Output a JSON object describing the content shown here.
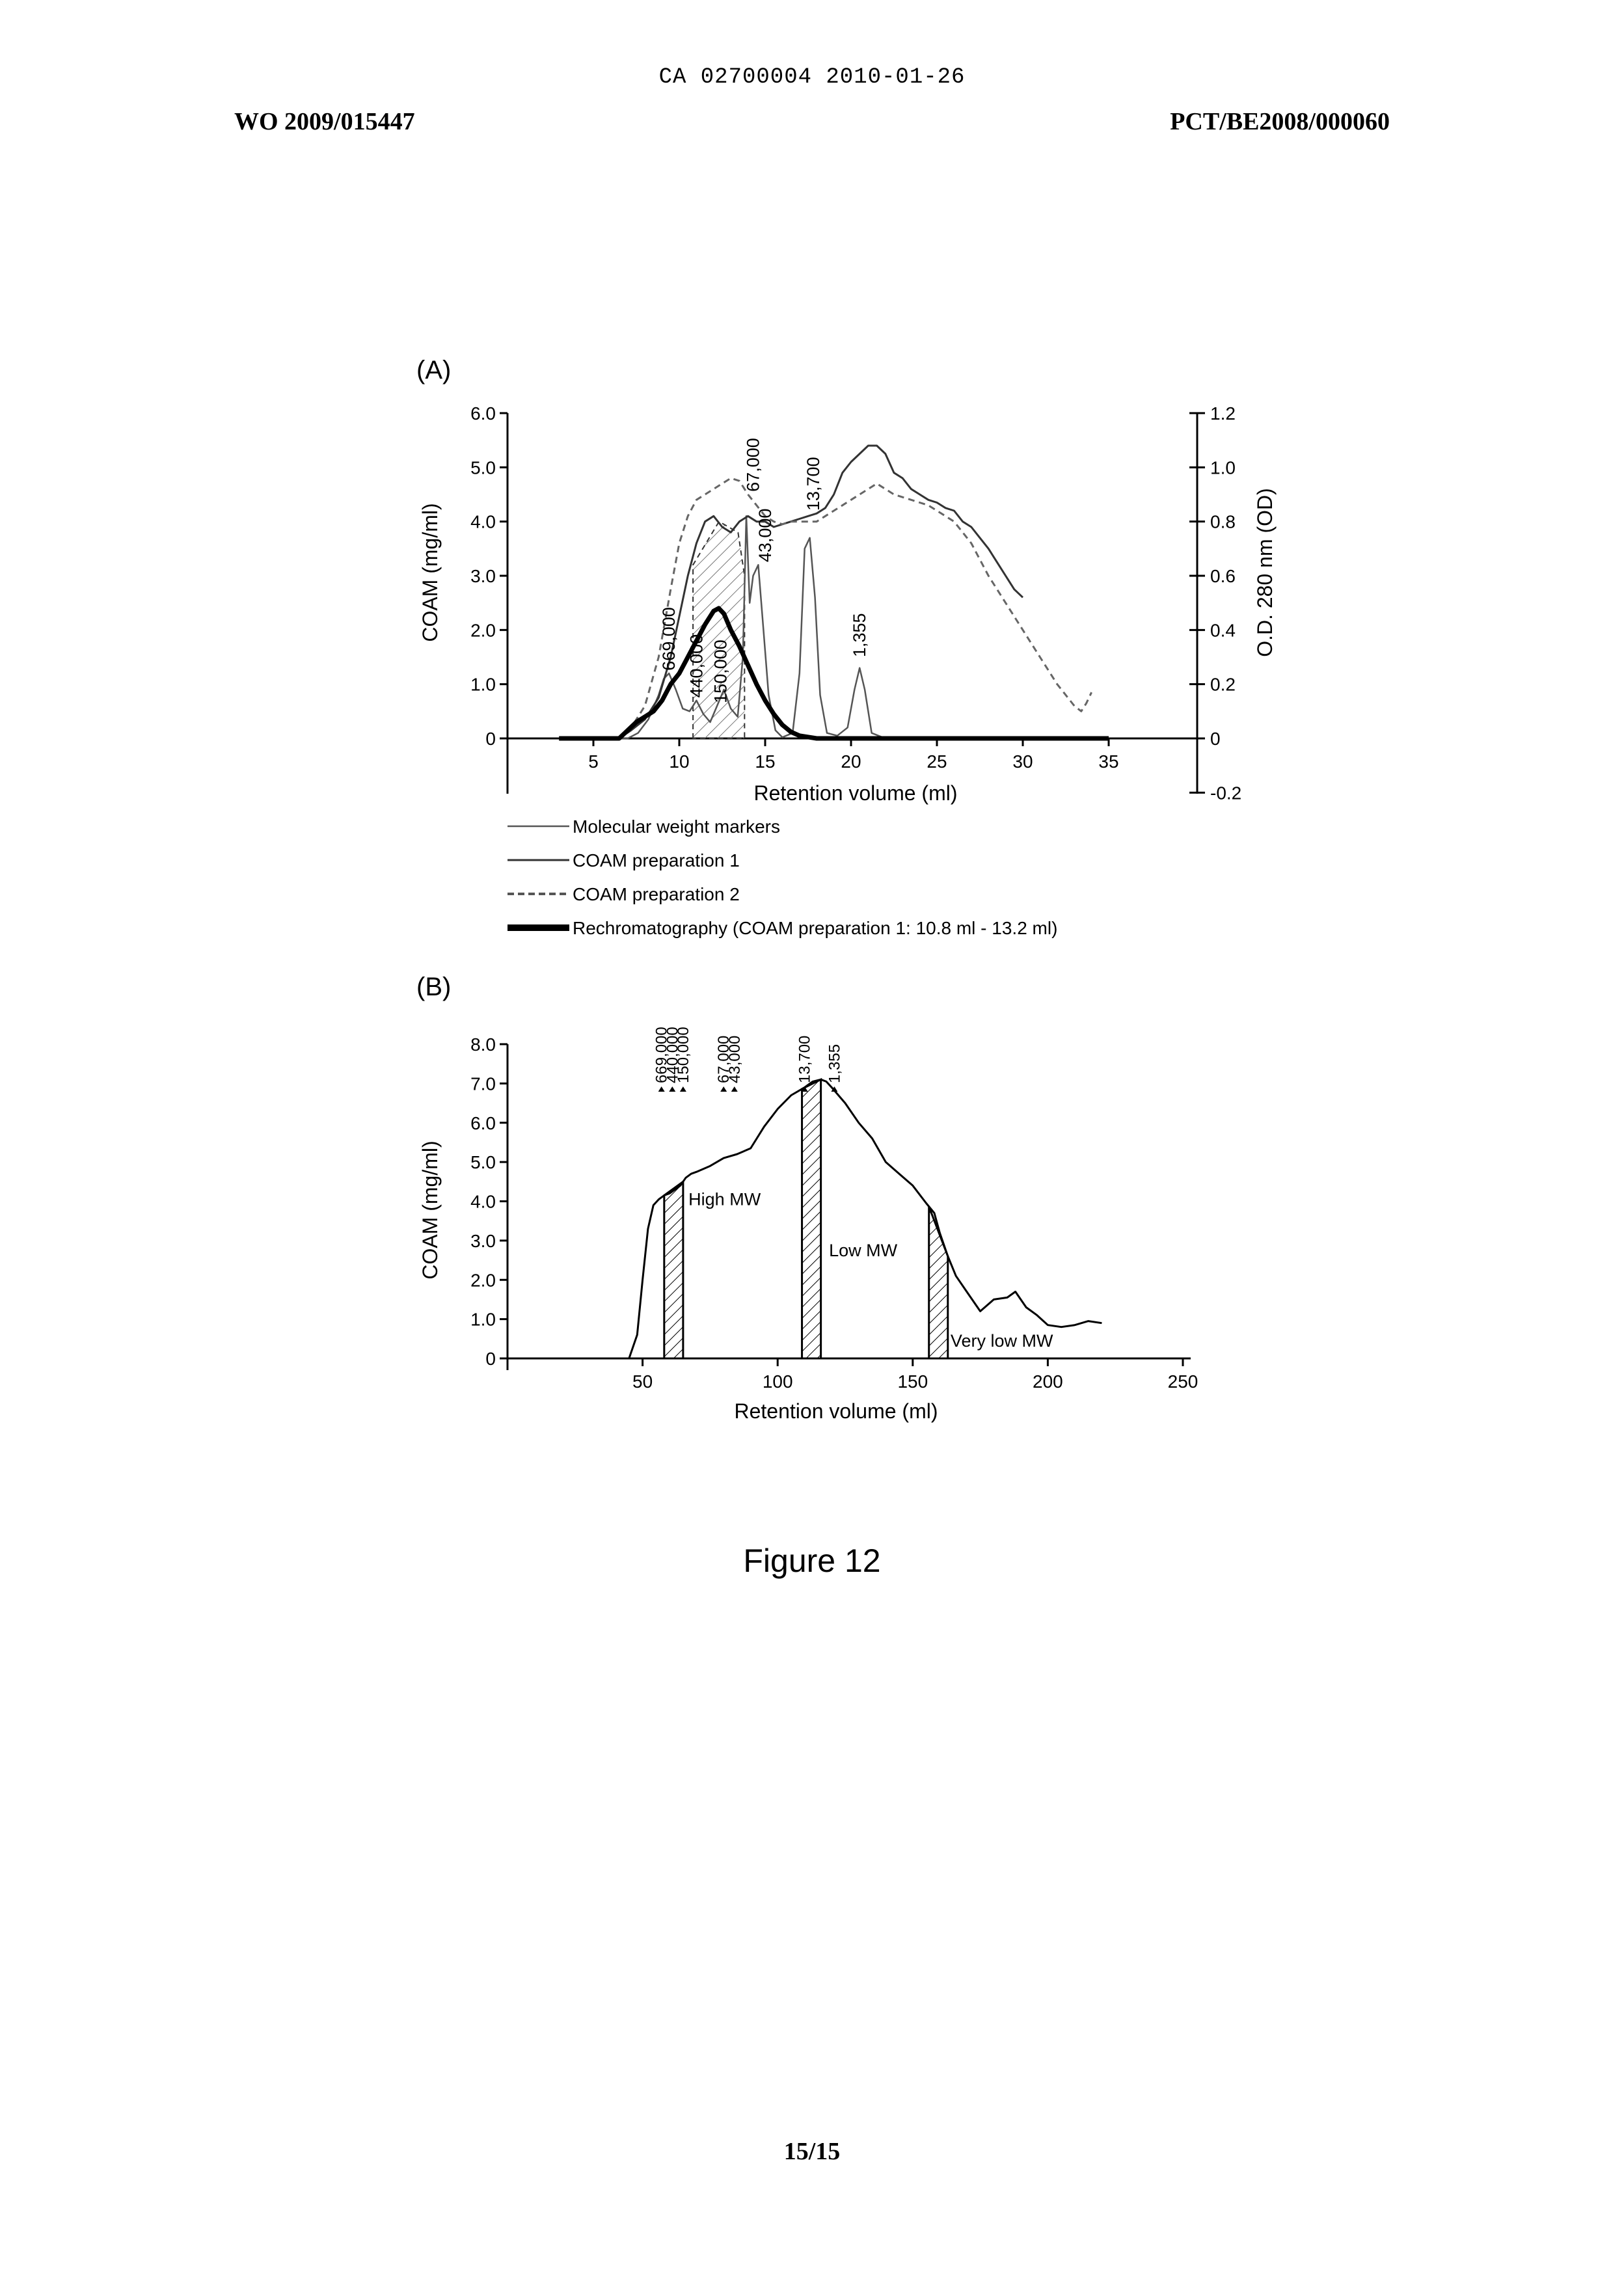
{
  "header": {
    "center": "CA 02700004 2010-01-26",
    "left": "WO 2009/015447",
    "right": "PCT/BE2008/000060"
  },
  "figure_caption": "Figure 12",
  "page_number": "15/15",
  "chart_data": [
    {
      "panel_label": "(A)",
      "type": "line",
      "xlabel": "Retention volume (ml)",
      "ylabel": "COAM (mg/ml)",
      "y2label": "O.D. 280 nm (OD)",
      "x_ticks": [
        5,
        10,
        15,
        20,
        25,
        30,
        35
      ],
      "y_ticks": [
        "0",
        "1.0",
        "2.0",
        "3.0",
        "4.0",
        "5.0",
        "6.0"
      ],
      "y2_ticks": [
        "-0.2",
        "0",
        "0.2",
        "0.4",
        "0.6",
        "0.8",
        "1.0",
        "1.2"
      ],
      "xlim": [
        0,
        40
      ],
      "ylim": [
        0,
        6.0
      ],
      "y2lim": [
        -0.2,
        1.2
      ],
      "shaded_region": {
        "from": 10.8,
        "to": 13.8
      },
      "legend": [
        {
          "label": "Molecular weight markers",
          "style": "thin"
        },
        {
          "label": "COAM preparation 1",
          "style": "solid"
        },
        {
          "label": "COAM preparation 2",
          "style": "dashed"
        },
        {
          "label": "Rechromatography (COAM preparation 1: 10.8 ml - 13.2 ml)",
          "style": "thick"
        }
      ],
      "marker_labels": [
        {
          "text": "669,000",
          "x": 9.4,
          "y": 1.25
        },
        {
          "text": "440,000",
          "x": 11.0,
          "y": 0.75
        },
        {
          "text": "150,000",
          "x": 12.4,
          "y": 0.65
        },
        {
          "text": "67,000",
          "x": 14.3,
          "y": 4.55
        },
        {
          "text": "43,000",
          "x": 15.0,
          "y": 3.25
        },
        {
          "text": "13,700",
          "x": 17.8,
          "y": 4.2
        },
        {
          "text": "1,355",
          "x": 20.5,
          "y": 1.5
        }
      ],
      "series": [
        {
          "name": "Molecular weight markers",
          "axis": "left",
          "x": [
            3,
            7.0,
            7.6,
            8.2,
            8.8,
            9.1,
            9.4,
            9.8,
            10.2,
            10.6,
            11.0,
            11.4,
            11.8,
            12.2,
            12.6,
            13.0,
            13.4,
            13.7,
            13.9,
            14.1,
            14.3,
            14.6,
            14.9,
            15.2,
            15.6,
            16.0,
            16.6,
            17.0,
            17.3,
            17.6,
            17.9,
            18.2,
            18.6,
            19.2,
            19.8,
            20.2,
            20.5,
            20.8,
            21.2,
            22,
            25,
            34
          ],
          "y": [
            0,
            0,
            0.1,
            0.35,
            0.8,
            1.1,
            1.2,
            0.9,
            0.55,
            0.5,
            0.7,
            0.45,
            0.3,
            0.6,
            0.9,
            0.55,
            0.4,
            1.5,
            4.1,
            2.5,
            3.0,
            3.2,
            2.0,
            0.8,
            0.15,
            0.02,
            0.1,
            1.2,
            3.5,
            3.7,
            2.6,
            0.8,
            0.1,
            0.05,
            0.2,
            0.9,
            1.3,
            0.9,
            0.1,
            0,
            0,
            0
          ]
        },
        {
          "name": "COAM preparation 1",
          "axis": "right",
          "x": [
            6.5,
            7.2,
            8.0,
            8.8,
            9.5,
            10.0,
            10.5,
            11.0,
            11.5,
            12.0,
            12.5,
            13.0,
            13.5,
            14.0,
            14.5,
            15.0,
            15.5,
            16.0,
            16.5,
            17.0,
            17.5,
            18.0,
            18.5,
            19.0,
            19.5,
            20.0,
            20.5,
            21.0,
            21.5,
            22.0,
            22.5,
            23.0,
            23.5,
            24.0,
            24.5,
            25.0,
            25.5,
            26.0,
            26.5,
            27.0,
            27.5,
            28.0,
            28.5,
            29.0,
            29.5,
            30.0
          ],
          "y": [
            0,
            0.03,
            0.07,
            0.15,
            0.3,
            0.45,
            0.6,
            0.72,
            0.8,
            0.82,
            0.78,
            0.76,
            0.8,
            0.82,
            0.8,
            0.8,
            0.78,
            0.79,
            0.8,
            0.81,
            0.82,
            0.83,
            0.85,
            0.9,
            0.98,
            1.02,
            1.05,
            1.08,
            1.08,
            1.05,
            0.98,
            0.96,
            0.92,
            0.9,
            0.88,
            0.87,
            0.85,
            0.84,
            0.8,
            0.78,
            0.74,
            0.7,
            0.65,
            0.6,
            0.55,
            0.52
          ]
        },
        {
          "name": "COAM preparation 2",
          "axis": "right",
          "x": [
            6.5,
            7.2,
            8.0,
            8.8,
            9.5,
            10.0,
            10.5,
            11.0,
            11.5,
            12.0,
            12.5,
            13.0,
            13.5,
            14.0,
            14.5,
            15.0,
            15.5,
            16.0,
            16.5,
            17.0,
            17.5,
            18.0,
            18.5,
            19.0,
            19.5,
            20.0,
            20.5,
            21.0,
            21.5,
            22.0,
            22.5,
            23.0,
            23.5,
            24.0,
            24.5,
            25.0,
            25.5,
            26.0,
            26.5,
            27.0,
            27.5,
            28.0,
            28.5,
            29.0,
            29.5,
            30.0,
            30.5,
            31.0,
            31.5,
            32.0,
            32.5,
            33.0,
            33.4,
            33.7,
            34.0
          ],
          "y": [
            0,
            0.04,
            0.12,
            0.3,
            0.55,
            0.72,
            0.82,
            0.88,
            0.9,
            0.92,
            0.94,
            0.96,
            0.95,
            0.9,
            0.86,
            0.82,
            0.8,
            0.79,
            0.8,
            0.8,
            0.8,
            0.8,
            0.82,
            0.84,
            0.86,
            0.88,
            0.9,
            0.92,
            0.94,
            0.92,
            0.9,
            0.89,
            0.88,
            0.87,
            0.86,
            0.84,
            0.82,
            0.8,
            0.76,
            0.72,
            0.66,
            0.6,
            0.55,
            0.5,
            0.45,
            0.4,
            0.35,
            0.3,
            0.25,
            0.2,
            0.16,
            0.12,
            0.1,
            0.13,
            0.17
          ]
        },
        {
          "name": "Rechromatography (COAM preparation 1: 10.8 ml - 13.2 ml)",
          "axis": "left",
          "x": [
            3,
            6.5,
            7.0,
            7.5,
            8.0,
            8.5,
            9.0,
            9.5,
            10.0,
            10.5,
            11.0,
            11.5,
            12.0,
            12.3,
            12.6,
            13.0,
            13.5,
            14.0,
            14.5,
            15.0,
            15.5,
            16.0,
            16.5,
            17.0,
            18,
            35
          ],
          "y": [
            0,
            0,
            0.15,
            0.3,
            0.4,
            0.5,
            0.7,
            1.0,
            1.2,
            1.5,
            1.8,
            2.1,
            2.35,
            2.4,
            2.3,
            2.0,
            1.7,
            1.35,
            1.0,
            0.7,
            0.45,
            0.25,
            0.12,
            0.05,
            0,
            0
          ]
        }
      ]
    },
    {
      "panel_label": "(B)",
      "type": "line",
      "xlabel": "Retention volume (ml)",
      "ylabel": "COAM (mg/ml)",
      "x_ticks": [
        50,
        100,
        150,
        200,
        250
      ],
      "y_ticks": [
        "0",
        "1.0",
        "2.0",
        "3.0",
        "4.0",
        "5.0",
        "6.0",
        "7.0",
        "8.0"
      ],
      "xlim": [
        0,
        250
      ],
      "ylim": [
        0,
        8.0
      ],
      "marker_labels": [
        {
          "text": "669,000",
          "x": 57
        },
        {
          "text": "440,000",
          "x": 61
        },
        {
          "text": "150,000",
          "x": 65
        },
        {
          "text": "67,000",
          "x": 80
        },
        {
          "text": "43,000",
          "x": 84
        },
        {
          "text": "13,700",
          "x": 110
        },
        {
          "text": "1,355",
          "x": 121
        }
      ],
      "shaded_regions": [
        {
          "from": 58,
          "to": 65
        },
        {
          "from": 109,
          "to": 116
        },
        {
          "from": 156,
          "to": 163
        }
      ],
      "region_labels": [
        {
          "text": "High MW",
          "x": 67,
          "y": 3.9
        },
        {
          "text": "Low MW",
          "x": 119,
          "y": 2.6
        },
        {
          "text": "Very low MW",
          "x": 164,
          "y": 0.3
        }
      ],
      "series": [
        {
          "name": "",
          "x": [
            45,
            48,
            50,
            52,
            54,
            56,
            58,
            60,
            62,
            64,
            66,
            68,
            70,
            75,
            80,
            85,
            90,
            95,
            100,
            105,
            110,
            113,
            116,
            118,
            120,
            125,
            130,
            135,
            140,
            145,
            150,
            155,
            158,
            160,
            163,
            166,
            170,
            175,
            180,
            185,
            188,
            192,
            196,
            200,
            205,
            210,
            215,
            220
          ],
          "y": [
            0,
            0.6,
            2.0,
            3.3,
            3.9,
            4.05,
            4.15,
            4.2,
            4.3,
            4.4,
            4.6,
            4.7,
            4.75,
            4.9,
            5.1,
            5.2,
            5.35,
            5.9,
            6.35,
            6.7,
            6.9,
            7.05,
            7.1,
            7.05,
            6.9,
            6.5,
            6.0,
            5.6,
            5.0,
            4.7,
            4.4,
            3.95,
            3.7,
            3.2,
            2.6,
            2.1,
            1.7,
            1.2,
            1.5,
            1.55,
            1.7,
            1.3,
            1.1,
            0.85,
            0.8,
            0.85,
            0.95,
            0.9
          ]
        }
      ]
    }
  ]
}
